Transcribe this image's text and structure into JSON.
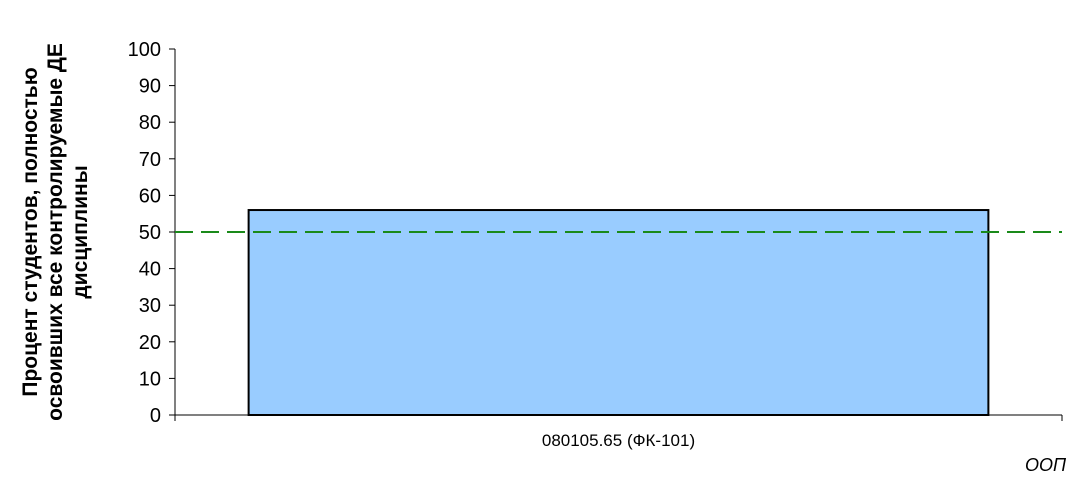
{
  "chart_data": {
    "type": "bar",
    "categories": [
      "080105.65 (ФК-101)"
    ],
    "values": [
      56
    ],
    "ylim": [
      0,
      100
    ],
    "yticks": [
      0,
      10,
      20,
      30,
      40,
      50,
      60,
      70,
      80,
      90,
      100
    ],
    "reference_line": {
      "value": 50,
      "style": "dashed",
      "color": "#1a8a1a"
    },
    "xlabel": "ООП",
    "ylabel_lines": [
      "Процент студентов, полностью",
      "освоивших все контролируемые ДЕ",
      "дисциплины"
    ],
    "bar_color": "#99ccff",
    "bar_edge_color": "#000000",
    "grid": false,
    "legend": "none"
  }
}
